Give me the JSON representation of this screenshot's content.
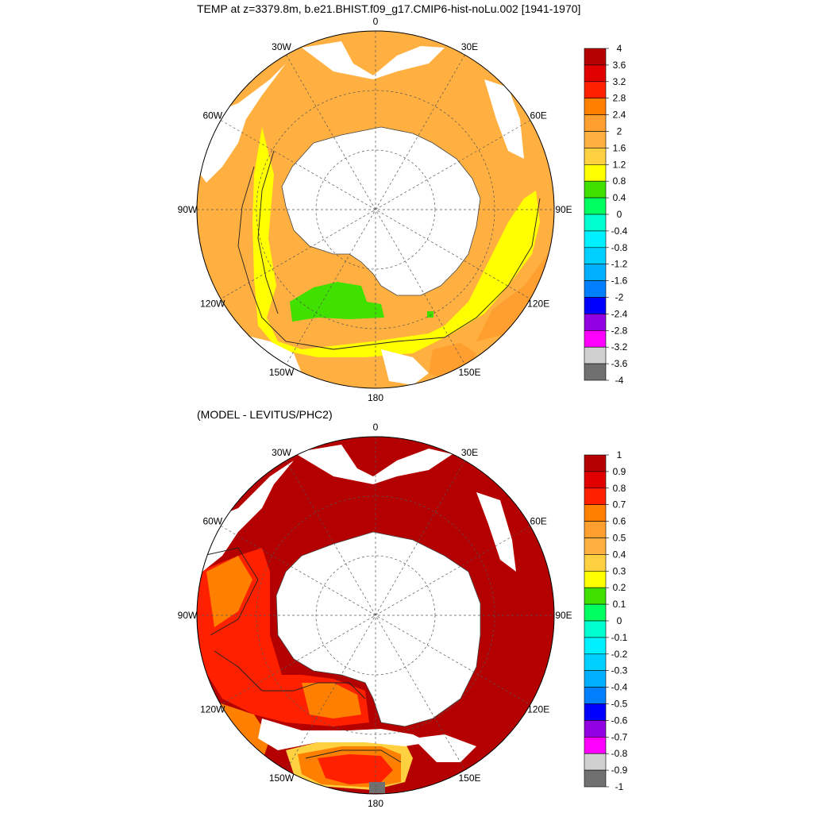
{
  "title": "TEMP at z=3379.8m, b.e21.BHIST.f09_g17.CMIP6-hist-noLu.002 [1941-1970]",
  "subtitle": "(MODEL - LEVITUS/PHC2)",
  "maps": [
    {
      "lon_labels": [
        "0",
        "30E",
        "60E",
        "90E",
        "120E",
        "150E",
        "180",
        "150W",
        "120W",
        "90W",
        "60W",
        "30W"
      ],
      "colorbar": {
        "labels": [
          "4",
          "3.6",
          "3.2",
          "2.8",
          "2.4",
          "2",
          "1.6",
          "1.2",
          "0.8",
          "0.4",
          "0",
          "-0.4",
          "-0.8",
          "-1.2",
          "-1.6",
          "-2",
          "-2.4",
          "-2.8",
          "-3.2",
          "-3.6",
          "-4"
        ],
        "colors": [
          "#b40000",
          "#e00000",
          "#ff2000",
          "#ff8000",
          "#ff9f30",
          "#ffb040",
          "#ffd040",
          "#ffff00",
          "#40e000",
          "#00ff60",
          "#00ffd0",
          "#00f0ff",
          "#00d0ff",
          "#00b0ff",
          "#0080ff",
          "#0000ff",
          "#9000e0",
          "#ff00ff",
          "#d0d0d0",
          "#707070"
        ]
      }
    },
    {
      "lon_labels": [
        "0",
        "30E",
        "60E",
        "90E",
        "120E",
        "150E",
        "180",
        "150W",
        "120W",
        "90W",
        "60W",
        "30W"
      ],
      "colorbar": {
        "labels": [
          "1",
          "0.9",
          "0.8",
          "0.7",
          "0.6",
          "0.5",
          "0.4",
          "0.3",
          "0.2",
          "0.1",
          "0",
          "-0.1",
          "-0.2",
          "-0.3",
          "-0.4",
          "-0.5",
          "-0.6",
          "-0.7",
          "-0.8",
          "-0.9",
          "-1"
        ],
        "colors": [
          "#b40000",
          "#e00000",
          "#ff2000",
          "#ff8000",
          "#ff9f30",
          "#ffb040",
          "#ffd040",
          "#ffff00",
          "#40e000",
          "#00ff60",
          "#00ffd0",
          "#00f0ff",
          "#00d0ff",
          "#00b0ff",
          "#0080ff",
          "#0000ff",
          "#9000e0",
          "#ff00ff",
          "#d0d0d0",
          "#707070"
        ]
      }
    }
  ]
}
